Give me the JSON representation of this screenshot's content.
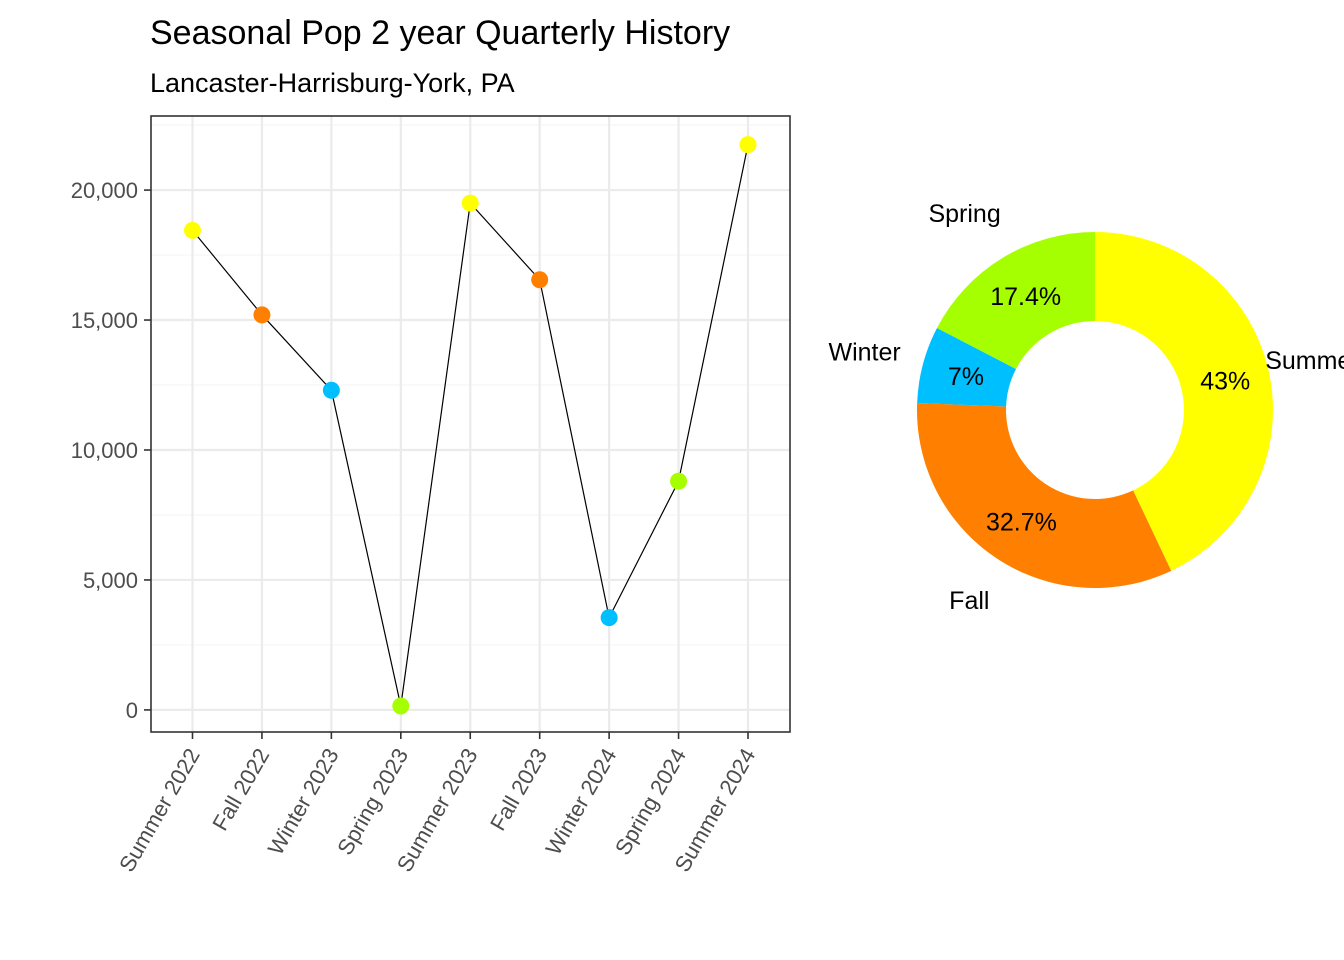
{
  "chart_data": [
    {
      "type": "line",
      "title": "Seasonal Pop 2 year Quarterly History",
      "subtitle": "Lancaster-Harrisburg-York, PA",
      "xlabel": "",
      "ylabel": "",
      "categories": [
        "Summer 2022",
        "Fall 2022",
        "Winter 2023",
        "Spring 2023",
        "Summer 2023",
        "Fall 2023",
        "Winter 2024",
        "Spring 2024",
        "Summer 2024"
      ],
      "values": [
        18450,
        15200,
        12300,
        150,
        19500,
        16550,
        3550,
        8800,
        21750
      ],
      "point_seasons": [
        "Summer",
        "Fall",
        "Winter",
        "Spring",
        "Summer",
        "Fall",
        "Winter",
        "Spring",
        "Summer"
      ],
      "ylim": [
        -850,
        22850
      ],
      "yticks": [
        0,
        5000,
        10000,
        15000,
        20000
      ],
      "ytick_labels": [
        "0",
        "5,000",
        "10,000",
        "15,000",
        "20,000"
      ],
      "grid": true,
      "line_color": "#000000"
    },
    {
      "type": "pie",
      "style": "donut",
      "slices": [
        {
          "name": "Summer",
          "percent": 43,
          "label": "43%",
          "color": "#FFFF00"
        },
        {
          "name": "Fall",
          "percent": 32.7,
          "label": "32.7%",
          "color": "#FF8000"
        },
        {
          "name": "Winter",
          "percent": 7,
          "label": "7%",
          "color": "#00BFFF"
        },
        {
          "name": "Spring",
          "percent": 17.4,
          "label": "17.4%",
          "color": "#A6FF00"
        }
      ]
    }
  ],
  "colors": {
    "Summer": "#FFFF00",
    "Fall": "#FF8000",
    "Winter": "#00BFFF",
    "Spring": "#A6FF00",
    "grid_major": "#EBEBEB",
    "grid_minor": "#F5F5F5",
    "panel_border": "#333333",
    "tick_text": "#4D4D4D"
  }
}
